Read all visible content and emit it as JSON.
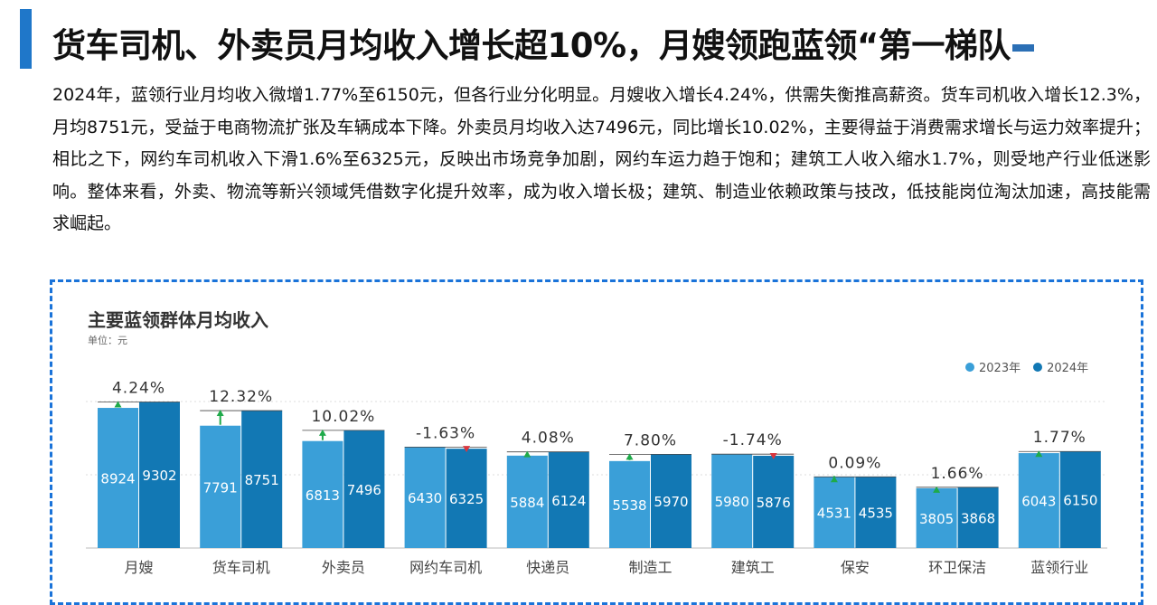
{
  "headline": {
    "text": "货车司机、外卖员月均收入增长超10%，月嫂领跑蓝领“第一梯队"
  },
  "summary": {
    "text": "2024年，蓝领行业月均收入微增1.77%至6150元，但各行业分化明显。月嫂收入增长4.24%，供需失衡推高薪资。货车司机收入增长12.3%，月均8751元，受益于电商物流扩张及车辆成本下降。外卖员月均收入达7496元，同比增长10.02%，主要得益于消费需求增长与运力效率提升；相比之下，网约车司机收入下滑1.6%至6325元，反映出市场竞争加剧，网约车运力趋于饱和；建筑工人收入缩水1.7%，则受地产行业低迷影响。整体来看，外卖、物流等新兴领域凭借数字化提升效率，成为收入增长极；建筑、制造业依赖政策与技改，低技能岗位淘汰加速，高技能需求崛起。"
  },
  "chart_data": {
    "type": "bar",
    "title": "主要蓝领群体月均收入",
    "unit_label": "单位：元",
    "legend_position": "top-right",
    "grid": true,
    "ylim": [
      0,
      11000
    ],
    "categories": [
      "月嫂",
      "货车司机",
      "外卖员",
      "网约车司机",
      "快递员",
      "制造工",
      "建筑工",
      "保安",
      "环卫保洁",
      "蓝领行业"
    ],
    "series": [
      {
        "name": "2023年",
        "values": [
          8924,
          7791,
          6813,
          6430,
          5884,
          5538,
          5980,
          4531,
          3805,
          6043
        ],
        "color": "#3a9fd8"
      },
      {
        "name": "2024年",
        "values": [
          9302,
          8751,
          7496,
          6325,
          6124,
          5970,
          5876,
          4535,
          3868,
          6150
        ],
        "color": "#1278b4"
      }
    ],
    "growth_labels": [
      "4.24%",
      "12.32%",
      "10.02%",
      "-1.63%",
      "4.08%",
      "7.80%",
      "-1.74%",
      "0.09%",
      "1.66%",
      "1.77%"
    ],
    "colors": {
      "up_arrow": "#1faa4a",
      "down_arrow": "#d9363e",
      "grid": "#dddddd"
    }
  }
}
